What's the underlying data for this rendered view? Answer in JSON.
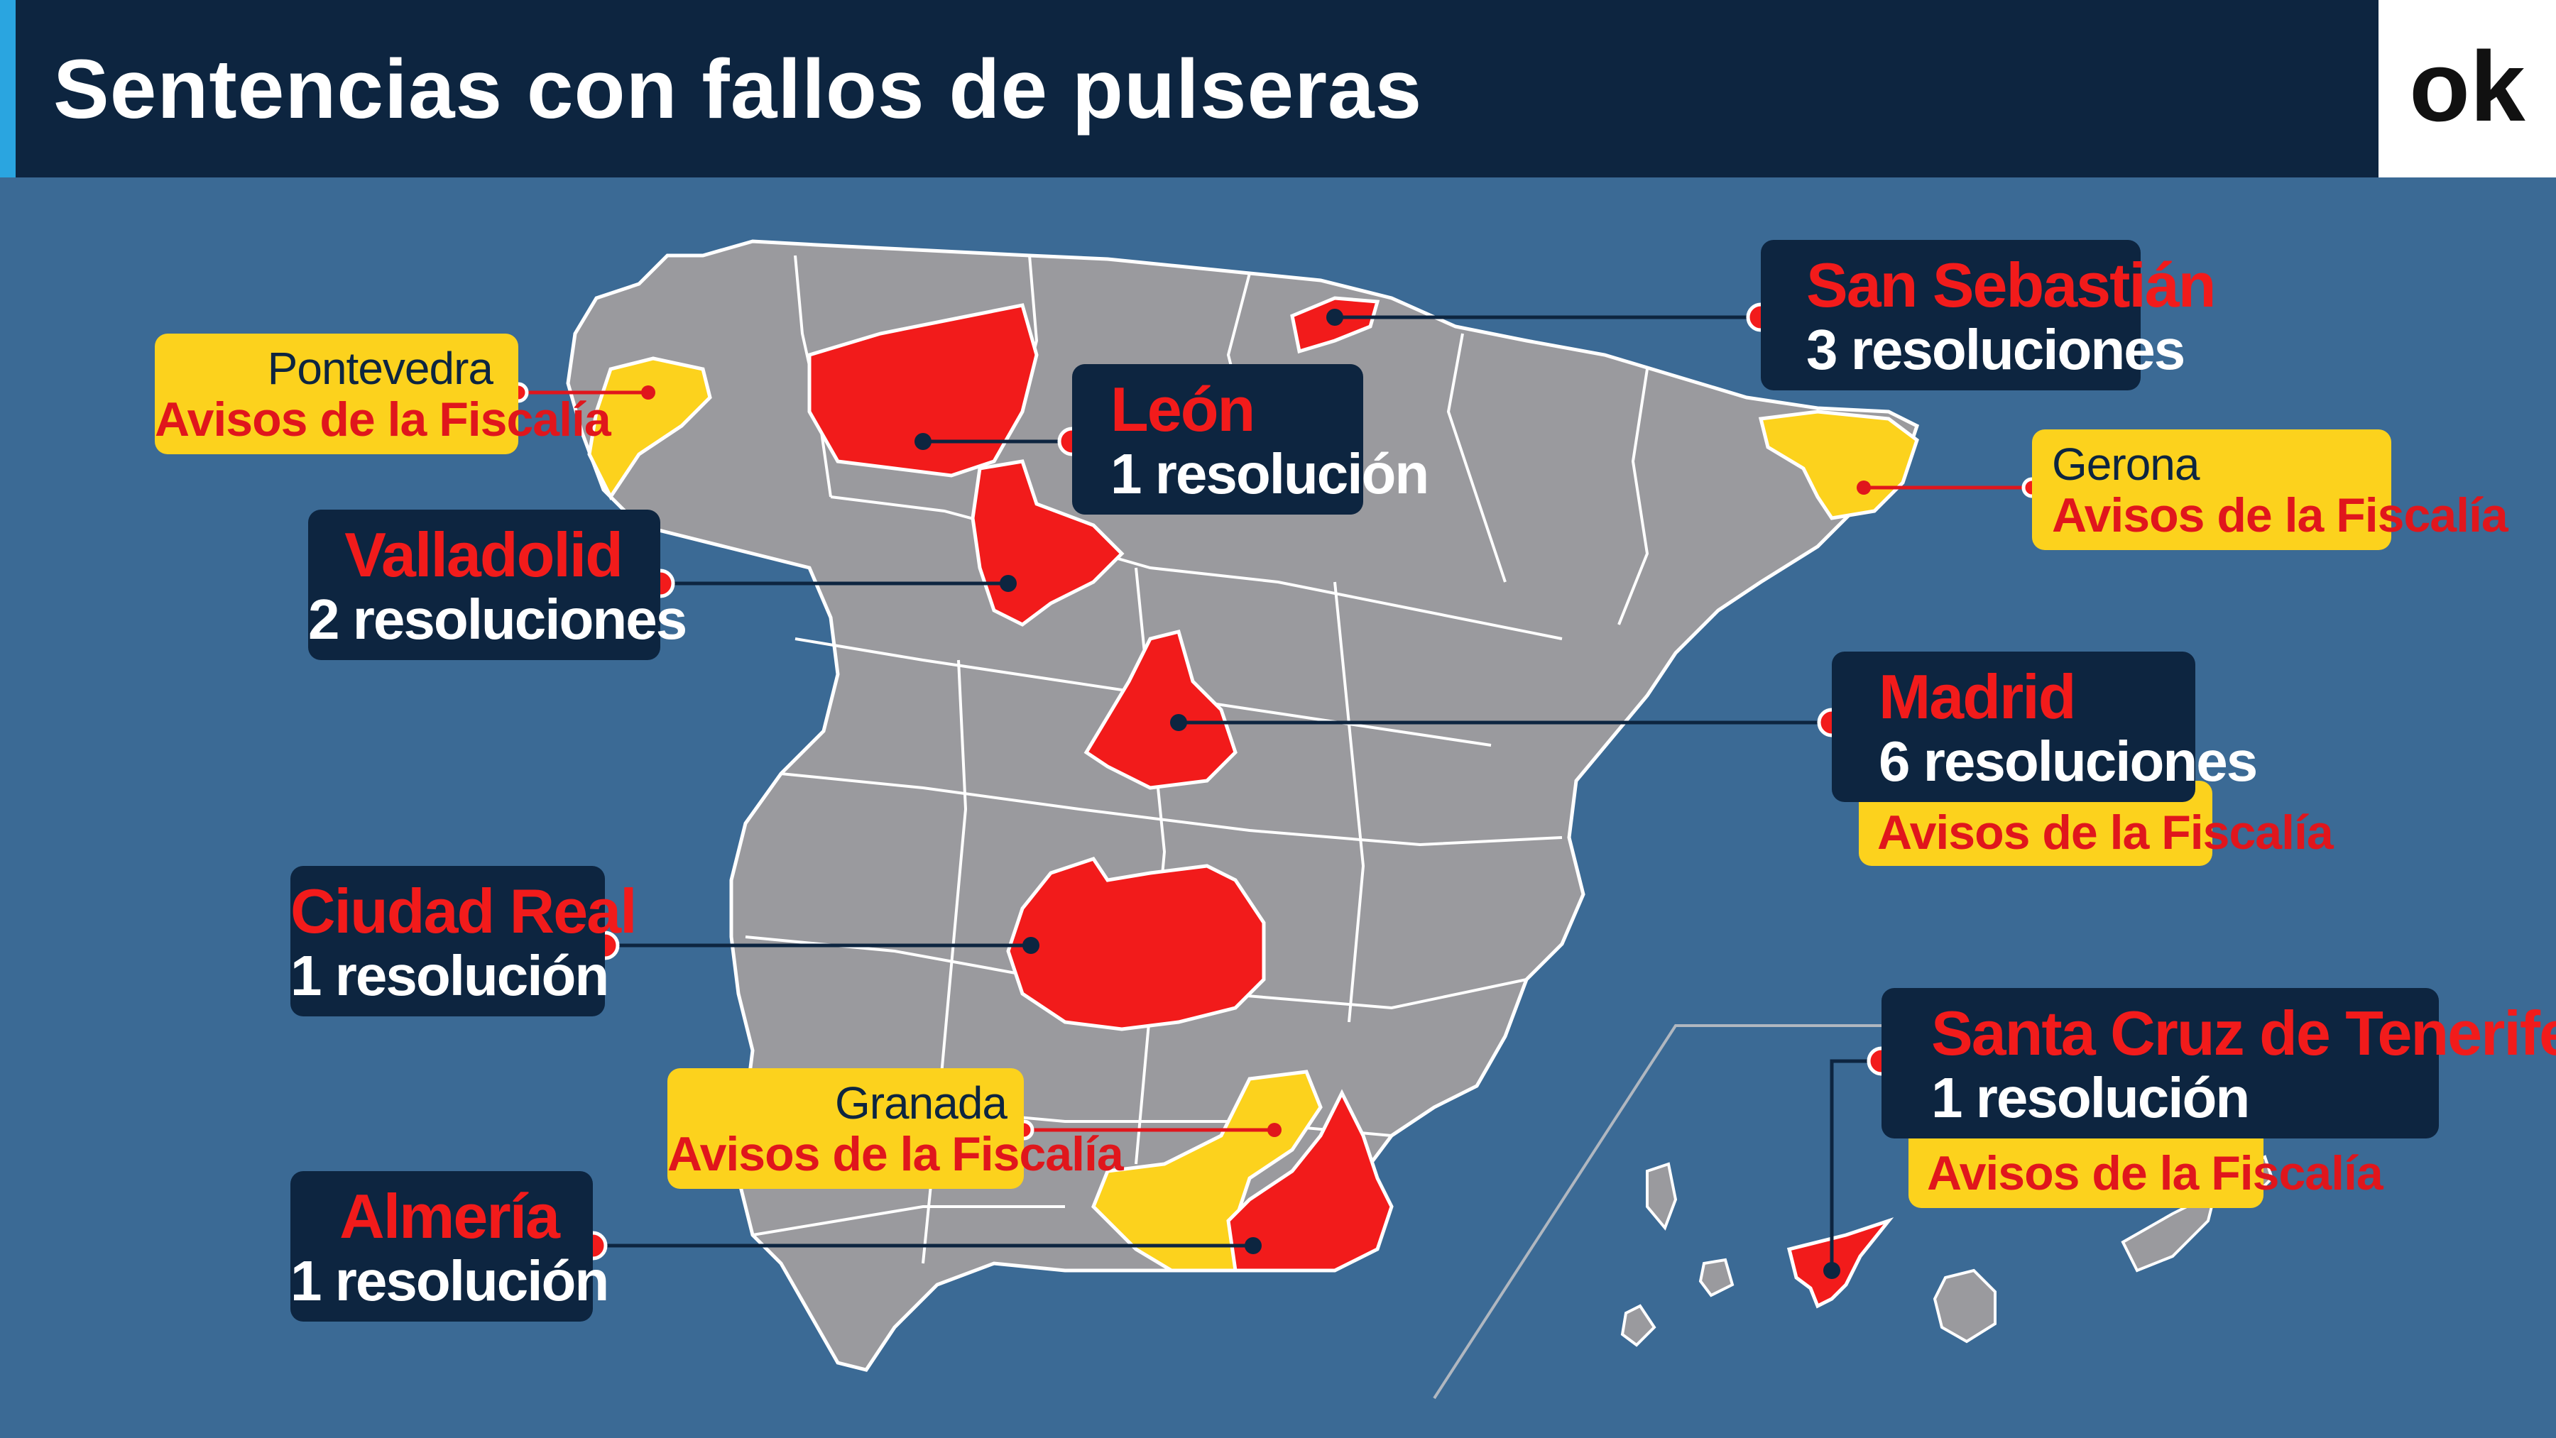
{
  "header": {
    "title": "Sentencias con fallos de pulseras",
    "logo_text": "ok"
  },
  "colors": {
    "background": "#3b6a95",
    "header": "#0d2540",
    "province_gray": "#9a9a9e",
    "highlight_red": "#f21b1b",
    "highlight_yellow": "#fcd21d"
  },
  "markers": {
    "pontevedra": {
      "province": "Pontevedra",
      "note": "Avisos de la Fiscalía"
    },
    "leon": {
      "name": "León",
      "count": "1 resolución"
    },
    "valladolid": {
      "name": "Valladolid",
      "count": "2 resoluciones"
    },
    "san_sebastian": {
      "name": "San Sebastián",
      "count": "3 resoluciones"
    },
    "gerona": {
      "province": "Gerona",
      "note": "Avisos de la Fiscalía"
    },
    "madrid": {
      "name": "Madrid",
      "count": "6 resoluciones",
      "note": "Avisos de la Fiscalía"
    },
    "ciudad_real": {
      "name": "Ciudad Real",
      "count": "1 resolución"
    },
    "granada": {
      "province": "Granada",
      "note": "Avisos de la Fiscalía"
    },
    "almeria": {
      "name": "Almería",
      "count": "1 resolución"
    },
    "santa_cruz": {
      "name": "Santa Cruz de Tenerife",
      "count": "1 resolución",
      "note": "Avisos de la Fiscalía"
    }
  }
}
